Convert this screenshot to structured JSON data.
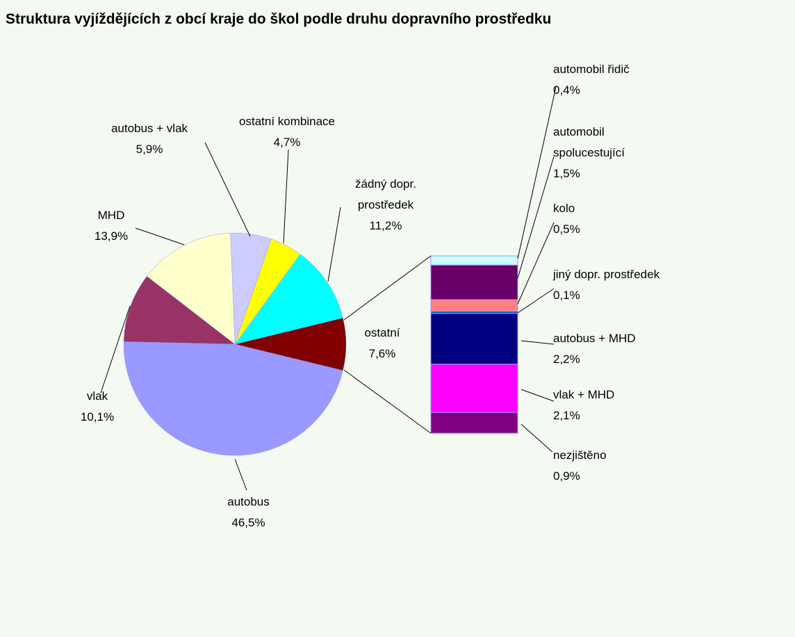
{
  "chart_data": {
    "type": "pie_of_bar",
    "title": "Struktura vyjíždějících z obcí kraje do škol podle druhu dopravního prostředku",
    "pie": {
      "categories": [
        "ostatní",
        "žádný dopr. prostředek",
        "ostatní kombinace",
        "autobus + vlak",
        "MHD",
        "vlak",
        "autobus"
      ],
      "values": [
        7.6,
        11.2,
        4.7,
        5.9,
        13.9,
        10.1,
        46.5
      ],
      "value_labels": [
        "7,6%",
        "11,2%",
        "4,7%",
        "5,9%",
        "13,9%",
        "10,1%",
        "46,5%"
      ],
      "colors": [
        "#800000",
        "#00ffff",
        "#ffff00",
        "#ccccff",
        "#ffffcc",
        "#993366",
        "#9999ff"
      ]
    },
    "bar": {
      "categories": [
        "automobil řidič",
        "automobil spolucestující",
        "kolo",
        "jiný dopr. prostředek",
        "autobus + MHD",
        "vlak + MHD",
        "nezjištěno"
      ],
      "values": [
        0.4,
        1.5,
        0.5,
        0.1,
        2.2,
        2.1,
        0.9
      ],
      "value_labels": [
        "0,4%",
        "1,5%",
        "0,5%",
        "0,1%",
        "2,2%",
        "2,1%",
        "0,9%"
      ],
      "colors": [
        "#ccffff",
        "#660066",
        "#ff8080",
        "#0066cc",
        "#000080",
        "#ff00ff",
        "#800080"
      ]
    }
  }
}
